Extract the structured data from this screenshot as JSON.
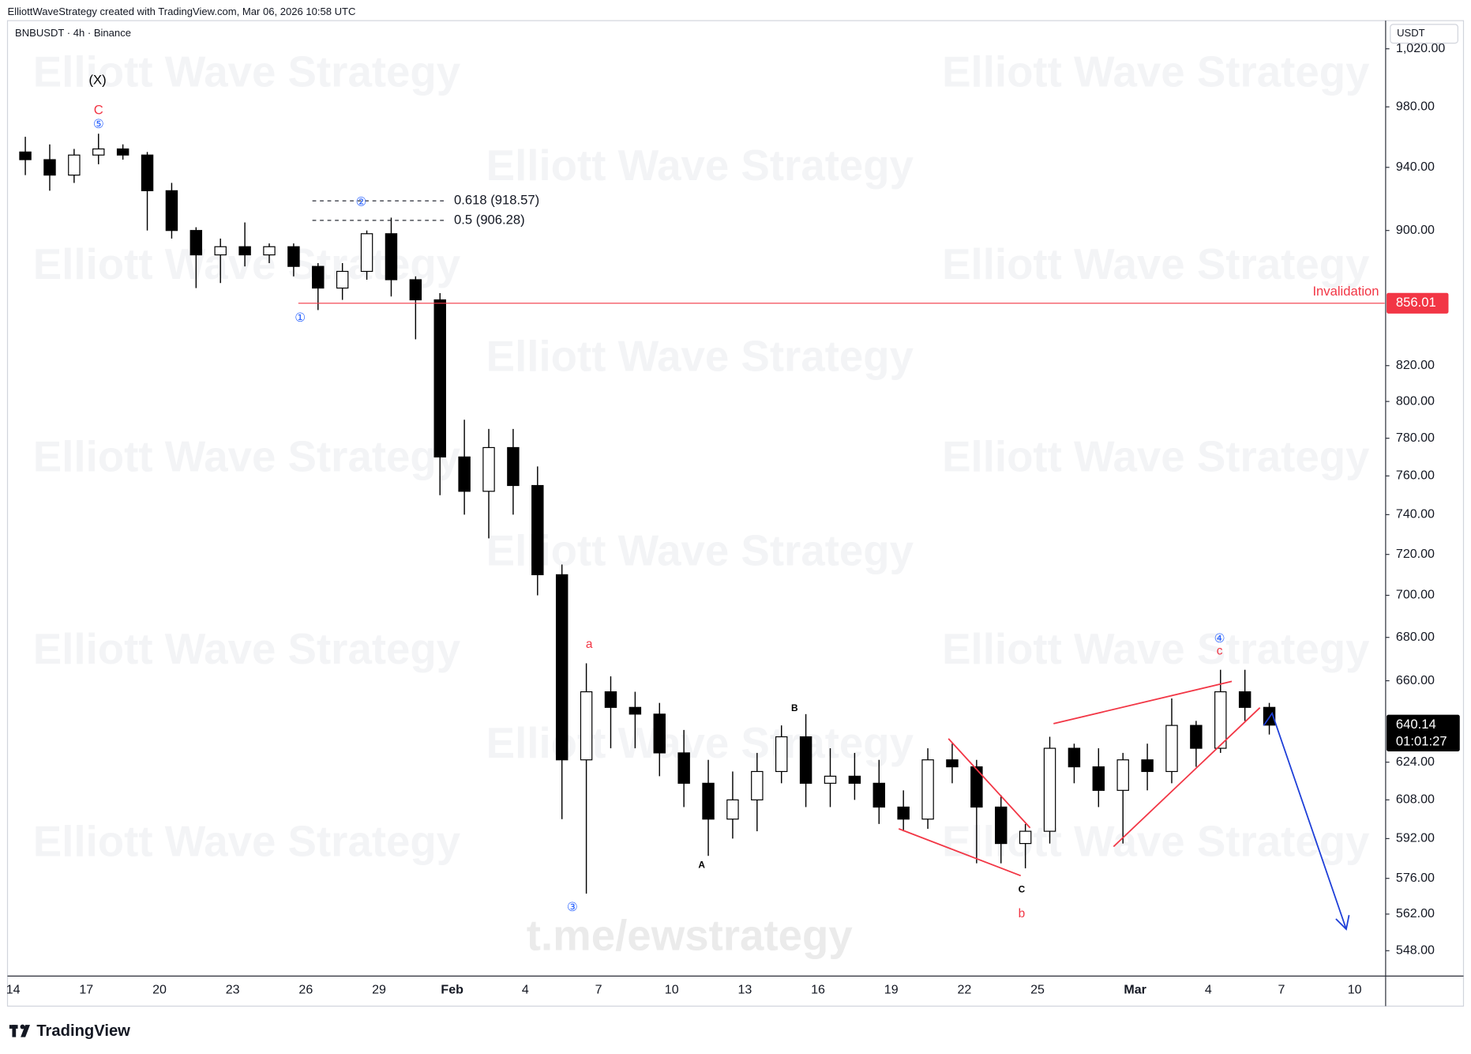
{
  "chart_data": {
    "type": "candlestick",
    "credit": "ElliottWaveStrategy created with TradingView.com, Mar 06, 2026 10:58 UTC",
    "title": "BNBUSDT · 4h · Binance",
    "currency": "USDT",
    "brand": "TradingView",
    "watermark": "Elliott Wave Strategy",
    "channel": "t.me/ewstrategy",
    "log_scale": true,
    "grid": false,
    "up_color": "#ffffff",
    "down_color": "#000000",
    "wick_color": "#000000",
    "categories": [
      "14",
      null,
      null,
      "17",
      null,
      null,
      "20",
      null,
      null,
      "23",
      null,
      null,
      "26",
      null,
      null,
      "29",
      null,
      null,
      "Feb",
      null,
      null,
      "4",
      null,
      null,
      "7",
      null,
      null,
      "10",
      null,
      null,
      "13",
      null,
      null,
      "16",
      null,
      null,
      "19",
      null,
      null,
      "22",
      null,
      null,
      "25",
      null,
      null,
      null,
      "Mar",
      null,
      null,
      "4",
      null,
      null,
      "7",
      null,
      null,
      "10",
      null
    ],
    "open": [
      950,
      945,
      935,
      948,
      952,
      948,
      925,
      900,
      885,
      890,
      885,
      890,
      878,
      865,
      875,
      898,
      870,
      858,
      770,
      752,
      775,
      755,
      710,
      625,
      655,
      648,
      645,
      628,
      615,
      600,
      608,
      620,
      635,
      615,
      618,
      615,
      605,
      600,
      625,
      622,
      605,
      590,
      595,
      630,
      622,
      612,
      625,
      620,
      640,
      630,
      655,
      648,
      null,
      null,
      null,
      null,
      null
    ],
    "high": [
      960,
      955,
      952,
      962,
      955,
      950,
      930,
      902,
      895,
      905,
      892,
      892,
      880,
      880,
      900,
      908,
      872,
      862,
      790,
      785,
      785,
      765,
      715,
      668,
      662,
      655,
      650,
      638,
      625,
      620,
      628,
      640,
      645,
      630,
      628,
      625,
      612,
      630,
      632,
      625,
      610,
      598,
      635,
      632,
      630,
      628,
      632,
      652,
      642,
      665,
      665,
      650,
      null,
      null,
      null,
      null,
      null
    ],
    "low": [
      935,
      925,
      930,
      942,
      945,
      900,
      895,
      865,
      868,
      878,
      880,
      872,
      852,
      858,
      870,
      860,
      835,
      750,
      740,
      728,
      740,
      700,
      600,
      570,
      630,
      630,
      618,
      605,
      585,
      592,
      595,
      615,
      605,
      605,
      608,
      598,
      595,
      596,
      615,
      582,
      582,
      580,
      590,
      615,
      605,
      590,
      612,
      615,
      622,
      628,
      642,
      636,
      null,
      null,
      null,
      null,
      null
    ],
    "close": [
      945,
      935,
      948,
      952,
      948,
      925,
      900,
      885,
      890,
      885,
      890,
      878,
      865,
      875,
      898,
      870,
      858,
      770,
      752,
      775,
      755,
      710,
      625,
      655,
      648,
      645,
      628,
      615,
      600,
      608,
      620,
      635,
      615,
      618,
      615,
      605,
      600,
      625,
      622,
      605,
      590,
      595,
      630,
      622,
      612,
      625,
      620,
      640,
      630,
      655,
      648,
      640.14,
      null,
      null,
      null,
      null,
      null
    ],
    "ylim": [
      538.5,
      1044
    ],
    "yticks": [
      {
        "value": 1020,
        "label": "1,020.00"
      },
      {
        "value": 980,
        "label": "980.00"
      },
      {
        "value": 940,
        "label": "940.00"
      },
      {
        "value": 900,
        "label": "900.00"
      },
      {
        "value": 820,
        "label": "820.00"
      },
      {
        "value": 800,
        "label": "800.00"
      },
      {
        "value": 780,
        "label": "780.00"
      },
      {
        "value": 760,
        "label": "760.00"
      },
      {
        "value": 740,
        "label": "740.00"
      },
      {
        "value": 720,
        "label": "720.00"
      },
      {
        "value": 700,
        "label": "700.00"
      },
      {
        "value": 680,
        "label": "680.00"
      },
      {
        "value": 660,
        "label": "660.00"
      },
      {
        "value": 624,
        "label": "624.00"
      },
      {
        "value": 608,
        "label": "608.00"
      },
      {
        "value": 592,
        "label": "592.00"
      },
      {
        "value": 576,
        "label": "576.00"
      },
      {
        "value": 562,
        "label": "562.00"
      },
      {
        "value": 548,
        "label": "548.00"
      }
    ],
    "fib_levels": [
      {
        "value": 918.57,
        "label": "0.618 (918.57)"
      },
      {
        "value": 906.28,
        "label": "0.5 (906.28)"
      }
    ],
    "invalidation": {
      "value": 856.01,
      "label": "856.01",
      "text": "Invalidation",
      "color": "#f23645"
    },
    "last_price": {
      "value": 640.14,
      "label": "640.14",
      "countdown": "01:01:27"
    },
    "annotations": [
      {
        "text": "(X)",
        "color": "#000000"
      },
      {
        "text": "C",
        "color": "#f23645"
      },
      {
        "text": "⑤",
        "color": "#2962ff"
      },
      {
        "text": "②",
        "color": "#2962ff"
      },
      {
        "text": "①",
        "color": "#2962ff"
      },
      {
        "text": "③",
        "color": "#2962ff"
      },
      {
        "text": "a",
        "color": "#f23645"
      },
      {
        "text": "A",
        "color": "#000000"
      },
      {
        "text": "B",
        "color": "#000000"
      },
      {
        "text": "C",
        "color": "#000000"
      },
      {
        "text": "b",
        "color": "#f23645"
      },
      {
        "text": "④",
        "color": "#2962ff"
      },
      {
        "text": "c",
        "color": "#f23645"
      }
    ]
  }
}
